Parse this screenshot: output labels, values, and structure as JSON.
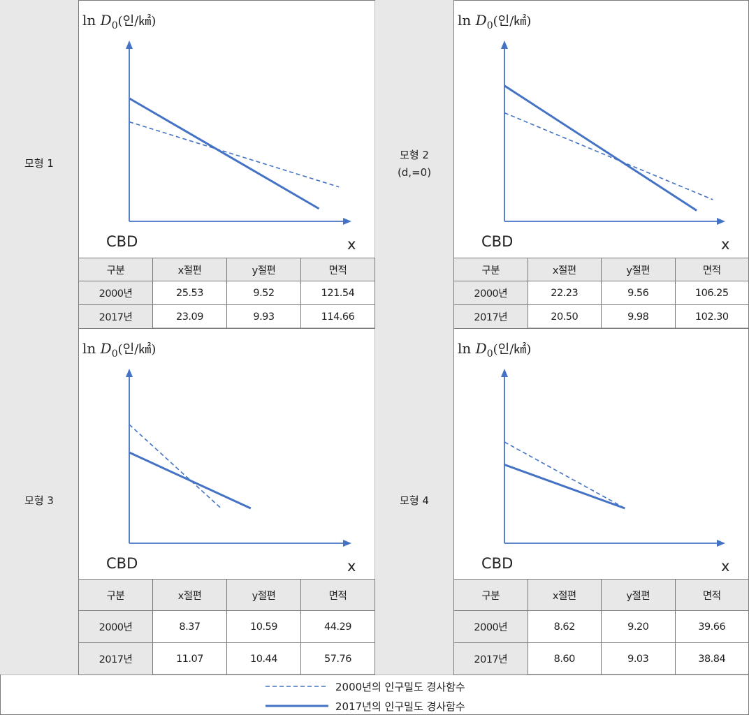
{
  "table_headers": [
    "구분",
    "x절편",
    "y절편",
    "면적"
  ],
  "axis": {
    "y_label": "ln D",
    "y_subscript": "0",
    "y_unit": "(인/㎢)",
    "origin_label": "CBD",
    "x_label": "x"
  },
  "colors": {
    "line": "#4472c4",
    "grid": "#7a7a7a",
    "header_bg": "#e8e8e8"
  },
  "chart_data": [
    {
      "type": "line",
      "model": "모형 1",
      "subtitle": "",
      "series": [
        {
          "year": "2000년",
          "style": "dashed",
          "x_intercept": 25.53,
          "y_intercept": 9.52,
          "area": 121.54
        },
        {
          "year": "2017년",
          "style": "solid",
          "x_intercept": 23.09,
          "y_intercept": 9.93,
          "area": 114.66
        }
      ]
    },
    {
      "type": "line",
      "model": "모형 2",
      "subtitle": "(d,=0)",
      "series": [
        {
          "year": "2000년",
          "style": "dashed",
          "x_intercept": 22.23,
          "y_intercept": 9.56,
          "area": 106.25
        },
        {
          "year": "2017년",
          "style": "solid",
          "x_intercept": 20.5,
          "y_intercept": 9.98,
          "area": 102.3
        }
      ]
    },
    {
      "type": "line",
      "model": "모형 3",
      "subtitle": "",
      "series": [
        {
          "year": "2000년",
          "style": "dashed",
          "x_intercept": 8.37,
          "y_intercept": 10.59,
          "area": 44.29
        },
        {
          "year": "2017년",
          "style": "solid",
          "x_intercept": 11.07,
          "y_intercept": 10.44,
          "area": 57.76
        }
      ]
    },
    {
      "type": "line",
      "model": "모형 4",
      "subtitle": "",
      "series": [
        {
          "year": "2000년",
          "style": "dashed",
          "x_intercept": 8.62,
          "y_intercept": 9.2,
          "area": 39.66
        },
        {
          "year": "2017년",
          "style": "solid",
          "x_intercept": 8.6,
          "y_intercept": 9.03,
          "area": 38.84
        }
      ]
    }
  ],
  "legend": [
    {
      "style": "dashed",
      "label": "2000년의 인구밀도 경사함수"
    },
    {
      "style": "solid",
      "label": "2017년의 인구밀도 경사함수"
    }
  ]
}
